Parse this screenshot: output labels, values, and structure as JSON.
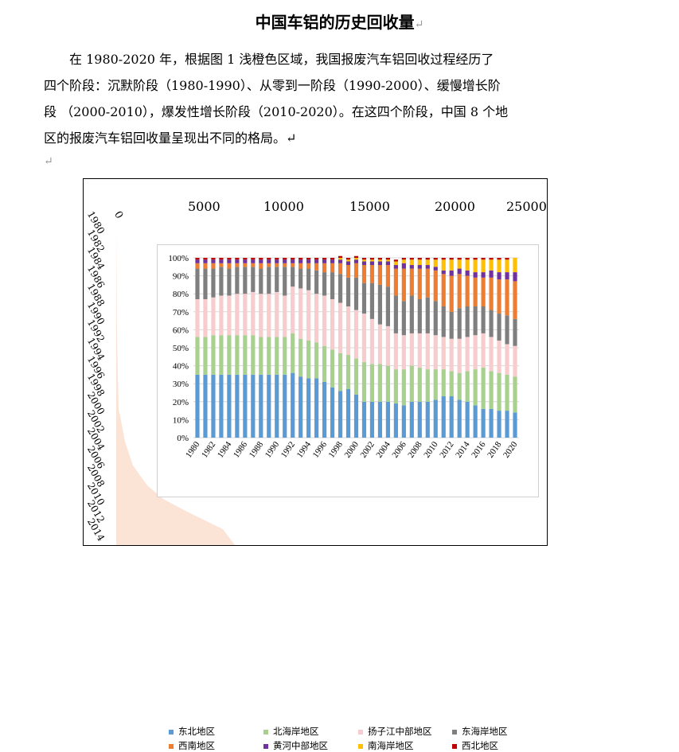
{
  "doc": {
    "title": "中国车铝的历史回收量",
    "para_mark": "↵",
    "paragraph_lines": [
      "　　在 1980-2020 年，根据图 1 浅橙色区域，我国报废汽车铝回收过程经历了",
      "四个阶段：沉默阶段（1980-1990）、从零到一阶段（1990-2000）、缓慢增长阶",
      "段 （2000-2010），爆发性增长阶段（2010-2020）。在这四个阶段，中国 8 个地",
      "区的报废汽车铝回收量呈现出不同的格局。↵"
    ],
    "empty_para_mark": "↵"
  },
  "outer_chart": {
    "top_axis_labels": [
      "0",
      "5000",
      "10000",
      "15000",
      "20000",
      "25000"
    ],
    "year_labels": [
      "1980",
      "1982",
      "1984",
      "1986",
      "1988",
      "1990",
      "1992",
      "1994",
      "1996",
      "1998",
      "2000",
      "2002",
      "2004",
      "2006",
      "2008",
      "2010",
      "2012",
      "2014"
    ],
    "fill_color": "#fbe3d6"
  },
  "chart_data": {
    "type": "bar",
    "stacked": "100%",
    "categories": [
      "1980",
      "1981",
      "1982",
      "1983",
      "1984",
      "1985",
      "1986",
      "1987",
      "1988",
      "1989",
      "1990",
      "1991",
      "1992",
      "1993",
      "1994",
      "1995",
      "1996",
      "1997",
      "1998",
      "1999",
      "2000",
      "2001",
      "2002",
      "2003",
      "2004",
      "2005",
      "2006",
      "2007",
      "2008",
      "2009",
      "2010",
      "2011",
      "2012",
      "2013",
      "2014",
      "2015",
      "2016",
      "2017",
      "2018",
      "2019",
      "2020"
    ],
    "x_tick_labels": [
      "1980",
      "1982",
      "1984",
      "1986",
      "1988",
      "1990",
      "1992",
      "1994",
      "1996",
      "1998",
      "2000",
      "2002",
      "2004",
      "2006",
      "2008",
      "2010",
      "2012",
      "2014",
      "2016",
      "2018",
      "2020"
    ],
    "y_tick_labels": [
      "0%",
      "10%",
      "20%",
      "30%",
      "40%",
      "50%",
      "60%",
      "70%",
      "80%",
      "90%",
      "100%"
    ],
    "ylim": [
      0,
      100
    ],
    "series": [
      {
        "name": "东北地区",
        "color": "#5b9bd5",
        "values": [
          35,
          35,
          35,
          35,
          35,
          35,
          35,
          35,
          35,
          35,
          35,
          35,
          36,
          34,
          33,
          33,
          31,
          28,
          26,
          27,
          24,
          20,
          20,
          20,
          20,
          19,
          18,
          20,
          20,
          20,
          21,
          23,
          23,
          21,
          20,
          18,
          16,
          16,
          15,
          15,
          14
        ]
      },
      {
        "name": "北海岸地区",
        "color": "#a9d18e",
        "values": [
          21,
          21,
          22,
          22,
          22,
          22,
          22,
          22,
          21,
          21,
          21,
          21,
          22,
          21,
          21,
          20,
          20,
          21,
          21,
          19,
          20,
          22,
          21,
          21,
          20,
          19,
          20,
          20,
          19,
          18,
          17,
          15,
          14,
          15,
          17,
          20,
          23,
          21,
          21,
          20,
          20
        ]
      },
      {
        "name": "扬子江中部地区",
        "color": "#f8cbcc",
        "values": [
          21,
          21,
          21,
          22,
          22,
          23,
          23,
          24,
          24,
          24,
          25,
          23,
          26,
          28,
          28,
          27,
          28,
          28,
          28,
          27,
          27,
          27,
          25,
          22,
          22,
          20,
          19,
          18,
          19,
          20,
          19,
          18,
          18,
          19,
          19,
          19,
          19,
          19,
          18,
          17,
          17
        ]
      },
      {
        "name": "东海岸地区",
        "color": "#7f7f7f",
        "values": [
          17,
          17,
          16,
          16,
          15,
          15,
          15,
          14,
          14,
          15,
          14,
          16,
          11,
          11,
          12,
          13,
          13,
          15,
          16,
          16,
          18,
          17,
          20,
          22,
          22,
          21,
          19,
          21,
          19,
          20,
          19,
          17,
          15,
          17,
          17,
          16,
          15,
          15,
          15,
          16,
          15
        ]
      },
      {
        "name": "西南地区",
        "color": "#ed7d31",
        "values": [
          3,
          3,
          3,
          2,
          3,
          2,
          2,
          2,
          3,
          2,
          2,
          2,
          2,
          3,
          3,
          4,
          5,
          5,
          6,
          7,
          8,
          10,
          10,
          11,
          12,
          15,
          18,
          15,
          17,
          16,
          17,
          18,
          20,
          19,
          17,
          16,
          16,
          18,
          19,
          20,
          21
        ]
      },
      {
        "name": "黄河中部地区",
        "color": "#7030a0",
        "values": [
          2,
          2,
          2,
          2,
          2,
          2,
          2,
          2,
          2,
          2,
          2,
          2,
          2,
          2,
          2,
          2,
          2,
          2,
          2,
          2,
          2,
          2,
          2,
          2,
          2,
          2,
          3,
          2,
          2,
          2,
          2,
          2,
          3,
          3,
          3,
          3,
          3,
          4,
          4,
          4,
          5
        ]
      },
      {
        "name": "南海岸地区",
        "color": "#ffc000",
        "values": [
          0,
          0,
          0,
          0,
          0,
          0,
          0,
          0,
          0,
          0,
          0,
          0,
          0,
          0,
          0,
          0,
          0,
          0,
          1,
          1,
          1,
          1,
          1,
          1,
          1,
          2,
          2,
          3,
          3,
          3,
          4,
          6,
          6,
          5,
          6,
          7,
          7,
          6,
          7,
          7,
          8
        ]
      },
      {
        "name": "西北地区",
        "color": "#c00000",
        "values": [
          1,
          1,
          1,
          1,
          1,
          1,
          1,
          1,
          1,
          1,
          1,
          1,
          1,
          1,
          1,
          1,
          1,
          1,
          1,
          1,
          1,
          1,
          1,
          1,
          1,
          1,
          1,
          1,
          1,
          1,
          1,
          1,
          1,
          1,
          1,
          1,
          1,
          1,
          1,
          1,
          0
        ]
      }
    ],
    "legend_position": "bottom"
  }
}
